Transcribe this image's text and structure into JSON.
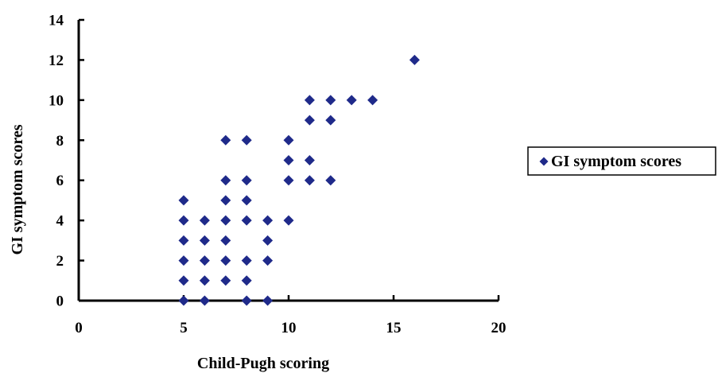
{
  "chart_data": {
    "type": "scatter",
    "xlabel": "Child-Pugh scoring",
    "ylabel": "GI symptom scores",
    "xlim": [
      0,
      20
    ],
    "ylim": [
      0,
      14
    ],
    "xticks": [
      0,
      5,
      10,
      15,
      20
    ],
    "yticks": [
      0,
      2,
      4,
      6,
      8,
      10,
      12,
      14
    ],
    "grid": false,
    "legend_position": "right",
    "series": [
      {
        "name": "GI symptom scores",
        "color": "#1f2a8a",
        "marker": "diamond",
        "points": [
          [
            5,
            0
          ],
          [
            5,
            1
          ],
          [
            5,
            2
          ],
          [
            5,
            3
          ],
          [
            5,
            4
          ],
          [
            5,
            5
          ],
          [
            6,
            0
          ],
          [
            6,
            1
          ],
          [
            6,
            2
          ],
          [
            6,
            3
          ],
          [
            6,
            4
          ],
          [
            7,
            1
          ],
          [
            7,
            2
          ],
          [
            7,
            3
          ],
          [
            7,
            4
          ],
          [
            7,
            5
          ],
          [
            7,
            6
          ],
          [
            7,
            8
          ],
          [
            8,
            0
          ],
          [
            8,
            1
          ],
          [
            8,
            2
          ],
          [
            8,
            4
          ],
          [
            8,
            5
          ],
          [
            8,
            6
          ],
          [
            8,
            8
          ],
          [
            9,
            0
          ],
          [
            9,
            2
          ],
          [
            9,
            3
          ],
          [
            9,
            4
          ],
          [
            10,
            4
          ],
          [
            10,
            6
          ],
          [
            10,
            7
          ],
          [
            10,
            8
          ],
          [
            11,
            6
          ],
          [
            11,
            7
          ],
          [
            11,
            9
          ],
          [
            11,
            10
          ],
          [
            12,
            6
          ],
          [
            12,
            9
          ],
          [
            12,
            10
          ],
          [
            13,
            10
          ],
          [
            14,
            10
          ],
          [
            16,
            12
          ]
        ]
      }
    ]
  }
}
